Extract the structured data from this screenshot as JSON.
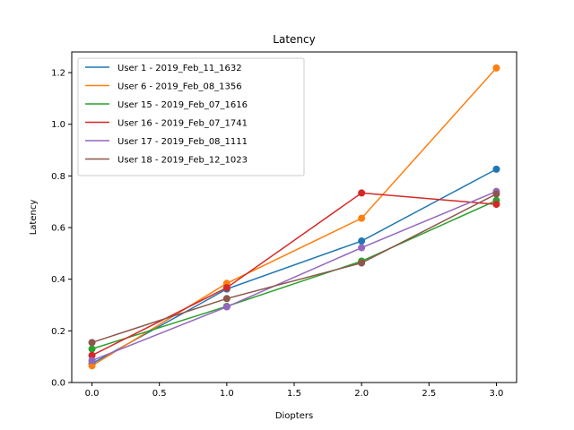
{
  "chart_data": {
    "type": "line",
    "title": "Latency",
    "xlabel": "Diopters",
    "ylabel": "Latency",
    "xlim": [
      -0.15,
      3.15
    ],
    "ylim": [
      0.0,
      1.28
    ],
    "xticks": [
      0.0,
      0.5,
      1.0,
      1.5,
      2.0,
      2.5,
      3.0
    ],
    "xtick_labels": [
      "0.0",
      "0.5",
      "1.0",
      "1.5",
      "2.0",
      "2.5",
      "3.0"
    ],
    "yticks": [
      0.0,
      0.2,
      0.4,
      0.6,
      0.8,
      1.0,
      1.2
    ],
    "ytick_labels": [
      "0.0",
      "0.2",
      "0.4",
      "0.6",
      "0.8",
      "1.0",
      "1.2"
    ],
    "grid": false,
    "legend_position": "top-left",
    "x": [
      0,
      1,
      2,
      3
    ],
    "series": [
      {
        "name": "User 1 - 2019_Feb_11_1632",
        "color": "#1f77b4",
        "values": [
          0.073,
          0.362,
          0.548,
          0.826
        ]
      },
      {
        "name": "User 6 - 2019_Feb_08_1356",
        "color": "#ff7f0e",
        "values": [
          0.065,
          0.384,
          0.636,
          1.218
        ]
      },
      {
        "name": "User 15 - 2019_Feb_07_1616",
        "color": "#2ca02c",
        "values": [
          0.13,
          0.295,
          0.47,
          0.705
        ]
      },
      {
        "name": "User 16 - 2019_Feb_07_1741",
        "color": "#d62728",
        "values": [
          0.105,
          0.367,
          0.734,
          0.69
        ]
      },
      {
        "name": "User 17 - 2019_Feb_08_1111",
        "color": "#9467bd",
        "values": [
          0.085,
          0.293,
          0.522,
          0.74
        ]
      },
      {
        "name": "User 18 - 2019_Feb_12_1023",
        "color": "#8c564b",
        "values": [
          0.155,
          0.325,
          0.463,
          0.73
        ]
      }
    ]
  }
}
